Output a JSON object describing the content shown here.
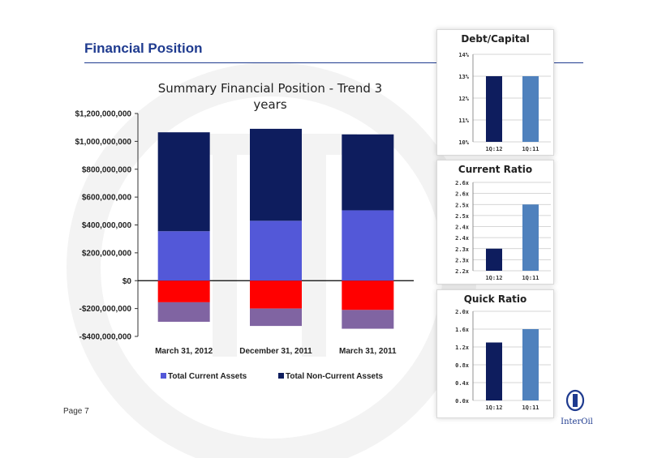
{
  "page": {
    "title": "Financial Position",
    "page_number": "Page 7",
    "logo_text": "InterOil"
  },
  "colors": {
    "title_blue": "#1f3b8f",
    "current_assets": "#5358d8",
    "non_current_assets": "#0e1d5e",
    "current_liabilities": "#ff0000",
    "non_current_liabilities": "#8064a2",
    "q1_12_bar": "#0e1d5e",
    "q1_11_bar": "#4f81bd"
  },
  "chart_data": [
    {
      "id": "summary",
      "type": "bar",
      "stacked": true,
      "title": "Summary Financial Position - Trend 3 years",
      "categories": [
        "March 31, 2012",
        "December 31, 2011",
        "March 31, 2011"
      ],
      "ylim": [
        -400000000,
        1200000000
      ],
      "yticks": [
        1200000000,
        1000000000,
        800000000,
        600000000,
        400000000,
        200000000,
        0,
        -200000000,
        -400000000
      ],
      "ytick_labels": [
        "$1,200,000,000",
        "$1,000,000,000",
        "$800,000,000",
        "$600,000,000",
        "$400,000,000",
        "$200,000,000",
        "$0",
        "-$200,000,000",
        "-$400,000,000"
      ],
      "series": [
        {
          "name": "Total Current Assets",
          "color": "#5358d8",
          "values": [
            355000000,
            430000000,
            505000000
          ]
        },
        {
          "name": "Total Non-Current Assets",
          "color": "#0e1d5e",
          "values": [
            710000000,
            660000000,
            545000000
          ]
        },
        {
          "name": "",
          "color": "#ff0000",
          "values": [
            -155000000,
            -200000000,
            -210000000
          ]
        },
        {
          "name": "",
          "color": "#8064a2",
          "values": [
            -140000000,
            -125000000,
            -135000000
          ]
        }
      ],
      "legend": {
        "position": "bottom",
        "entries": [
          "Total Current Assets",
          "Total Non-Current Assets"
        ]
      },
      "grid": false
    },
    {
      "id": "debt_capital",
      "type": "bar",
      "title": "Debt/Capital",
      "categories": [
        "1Q:12",
        "1Q:11"
      ],
      "values": [
        0.13,
        0.13
      ],
      "ylim": [
        0.1,
        0.14
      ],
      "yticks": [
        0.1,
        0.11,
        0.12,
        0.13,
        0.14
      ],
      "ytick_labels": [
        "10%",
        "11%",
        "12%",
        "13%",
        "14%"
      ],
      "grid": true
    },
    {
      "id": "current_ratio",
      "type": "bar",
      "title": "Current Ratio",
      "categories": [
        "1Q:12",
        "1Q:11"
      ],
      "values": [
        2.3,
        2.5
      ],
      "ylim": [
        2.2,
        2.6
      ],
      "yticks": [
        2.2,
        2.25,
        2.3,
        2.35,
        2.4,
        2.45,
        2.5,
        2.55,
        2.6
      ],
      "ytick_labels": [
        "2.2x",
        "2.3x",
        "2.3x",
        "2.4x",
        "2.4x",
        "2.5x",
        "2.5x",
        "2.6x",
        "2.6x"
      ],
      "grid": true
    },
    {
      "id": "quick_ratio",
      "type": "bar",
      "title": "Quick Ratio",
      "categories": [
        "1Q:12",
        "1Q:11"
      ],
      "values": [
        1.3,
        1.6
      ],
      "ylim": [
        0,
        2.0
      ],
      "yticks": [
        0,
        0.4,
        0.8,
        1.2,
        1.6,
        2.0
      ],
      "ytick_labels": [
        "0.0x",
        "0.4x",
        "0.8x",
        "1.2x",
        "1.6x",
        "2.0x"
      ],
      "grid": true
    }
  ]
}
